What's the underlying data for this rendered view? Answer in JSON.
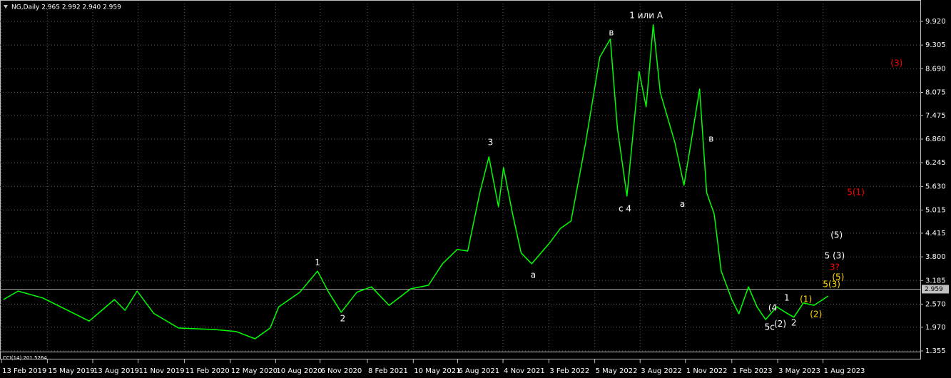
{
  "chart_data": {
    "type": "line",
    "title": "NG,Daily  2.965 2.992 2.940 2.959",
    "indicator": "CCI(14) 201.5264",
    "grid": true,
    "background": "#000000",
    "x": [
      "2019-02-17",
      "2019-03-18",
      "2019-05-06",
      "2019-07-02",
      "2019-08-06",
      "2019-09-25",
      "2019-10-16",
      "2019-11-09",
      "2019-12-12",
      "2020-01-30",
      "2020-04-10",
      "2020-05-23",
      "2020-06-30",
      "2020-07-30",
      "2020-08-16",
      "2020-09-27",
      "2020-11-01",
      "2020-11-23",
      "2020-12-18",
      "2021-01-18",
      "2021-02-16",
      "2021-03-23",
      "2021-05-05",
      "2021-06-09",
      "2021-07-07",
      "2021-08-05",
      "2021-08-26",
      "2021-09-19",
      "2021-10-07",
      "2021-10-26",
      "2021-11-05",
      "2021-11-23",
      "2021-12-10",
      "2021-12-31",
      "2022-02-05",
      "2022-02-26",
      "2022-03-19",
      "2022-04-17",
      "2022-05-15",
      "2022-06-05",
      "2022-06-19",
      "2022-07-08",
      "2022-08-01",
      "2022-08-15",
      "2022-08-29",
      "2022-09-12",
      "2022-10-11",
      "2022-10-29",
      "2022-11-12",
      "2022-11-29",
      "2022-12-13",
      "2022-12-28",
      "2023-01-11",
      "2023-02-01",
      "2023-02-15",
      "2023-03-06",
      "2023-03-23",
      "2023-04-09",
      "2023-05-01",
      "2023-05-18",
      "2023-06-04",
      "2023-06-23",
      "2023-07-14",
      "2023-08-11"
    ],
    "series": [
      {
        "color": "#00ff00",
        "values": [
          2.69,
          2.91,
          2.73,
          2.36,
          2.13,
          2.69,
          2.41,
          2.91,
          2.33,
          1.95,
          1.91,
          1.86,
          1.67,
          1.95,
          2.5,
          2.88,
          3.43,
          2.88,
          2.36,
          2.88,
          3.02,
          2.54,
          2.97,
          3.06,
          3.62,
          3.99,
          3.95,
          5.47,
          6.4,
          5.1,
          6.12,
          4.91,
          3.9,
          3.62,
          4.17,
          4.54,
          4.73,
          6.77,
          8.99,
          9.46,
          7.14,
          5.38,
          8.62,
          7.7,
          9.83,
          8.07,
          6.77,
          5.66,
          6.77,
          8.16,
          5.47,
          4.91,
          3.43,
          2.69,
          2.32,
          3.02,
          2.5,
          2.17,
          2.5,
          2.36,
          2.23,
          2.6,
          2.54,
          2.78
        ]
      }
    ],
    "current_price": 2.959,
    "xlim": [
      "2019-02-10",
      "2024-02-10"
    ],
    "ylim": [
      1.262,
      10.383
    ],
    "yticks": [
      {
        "value": 9.92,
        "label": "9.920"
      },
      9.305,
      {
        "value": 8.69,
        "label": "8.690"
      },
      8.075,
      7.475,
      {
        "value": 6.86,
        "label": "6.860"
      },
      6.245,
      {
        "value": 5.63,
        "label": "5.630"
      },
      5.015,
      4.415,
      {
        "value": 3.8,
        "label": "3.800"
      },
      3.185,
      {
        "value": 2.57,
        "label": "2.570"
      },
      {
        "value": 1.97,
        "label": "1.970"
      },
      1.355
    ],
    "xticks": [
      {
        "value": "2019-02-13",
        "label": "13 Feb 2019"
      },
      {
        "value": "2019-05-15",
        "label": "15 May 2019"
      },
      {
        "value": "2019-08-13",
        "label": "13 Aug 2019"
      },
      {
        "value": "2019-11-11",
        "label": "11 Nov 2019"
      },
      {
        "value": "2020-02-11",
        "label": "11 Feb 2020"
      },
      {
        "value": "2020-05-12",
        "label": "12 May 2020"
      },
      {
        "value": "2020-08-10",
        "label": "10 Aug 2020"
      },
      {
        "value": "2020-11-06",
        "label": "6 Nov 2020"
      },
      {
        "value": "2021-02-08",
        "label": "8 Feb 2021"
      },
      {
        "value": "2021-05-10",
        "label": "10 May 2021"
      },
      {
        "value": "2021-08-06",
        "label": "6 Aug 2021"
      },
      {
        "value": "2021-11-04",
        "label": "4 Nov 2021"
      },
      {
        "value": "2022-02-03",
        "label": "3 Feb 2022"
      },
      {
        "value": "2022-05-05",
        "label": "5 May 2022"
      },
      {
        "value": "2022-08-03",
        "label": "3 Aug 2022"
      },
      {
        "value": "2022-11-01",
        "label": "1 Nov 2022"
      },
      {
        "value": "2023-02-01",
        "label": "1 Feb 2023"
      },
      {
        "value": "2023-05-03",
        "label": "3 May 2023"
      },
      {
        "value": "2023-08-01",
        "label": "1 Aug 2023"
      }
    ],
    "annotations": [
      {
        "text": "1 или A",
        "x": "2022-08-15",
        "y": 10.07,
        "color": "#ffffff"
      },
      {
        "text": "в",
        "x": "2022-06-07",
        "y": 9.62,
        "color": "#ffffff"
      },
      {
        "text": "3",
        "x": "2021-10-10",
        "y": 6.77,
        "color": "#ffffff"
      },
      {
        "text": "1",
        "x": "2020-11-01",
        "y": 3.64,
        "color": "#ffffff"
      },
      {
        "text": "2",
        "x": "2020-12-21",
        "y": 2.19,
        "color": "#ffffff"
      },
      {
        "text": "а",
        "x": "2022-01-03",
        "y": 3.32,
        "color": "#ffffff"
      },
      {
        "text": "с 4",
        "x": "2022-07-04",
        "y": 5.04,
        "color": "#ffffff"
      },
      {
        "text": "а",
        "x": "2022-10-26",
        "y": 5.16,
        "color": "#ffffff"
      },
      {
        "text": "в",
        "x": "2022-12-22",
        "y": 6.86,
        "color": "#ffffff"
      },
      {
        "text": "(3)",
        "x": "2023-12-25",
        "y": 8.83,
        "color": "#ff0000"
      },
      {
        "text": "5(1)",
        "x": "2023-10-05",
        "y": 5.47,
        "color": "#ff0000"
      },
      {
        "text": "(5)",
        "x": "2023-08-28",
        "y": 4.36,
        "color": "#ffffff"
      },
      {
        "text": "5 (3)",
        "x": "2023-08-24",
        "y": 3.82,
        "color": "#ffffff"
      },
      {
        "text": "3?",
        "x": "2023-08-24",
        "y": 3.52,
        "color": "#ff0000"
      },
      {
        "text": "(5)",
        "x": "2023-08-31",
        "y": 3.26,
        "color": "#ffd700"
      },
      {
        "text": "5(3)",
        "x": "2023-08-18",
        "y": 3.08,
        "color": "#ffd700"
      },
      {
        "text": "1",
        "x": "2023-05-21",
        "y": 2.73,
        "color": "#ffffff"
      },
      {
        "text": "(1)",
        "x": "2023-06-28",
        "y": 2.69,
        "color": "#ffd700"
      },
      {
        "text": "(4",
        "x": "2023-04-23",
        "y": 2.47,
        "color": "#ffffff"
      },
      {
        "text": "5c",
        "x": "2023-04-17",
        "y": 1.97,
        "color": "#ffffff"
      },
      {
        "text": "(2)",
        "x": "2023-05-08",
        "y": 2.05,
        "color": "#ffffff"
      },
      {
        "text": "2",
        "x": "2023-06-04",
        "y": 2.08,
        "color": "#ffffff"
      },
      {
        "text": "(2)",
        "x": "2023-07-18",
        "y": 2.3,
        "color": "#ffd700"
      }
    ]
  }
}
